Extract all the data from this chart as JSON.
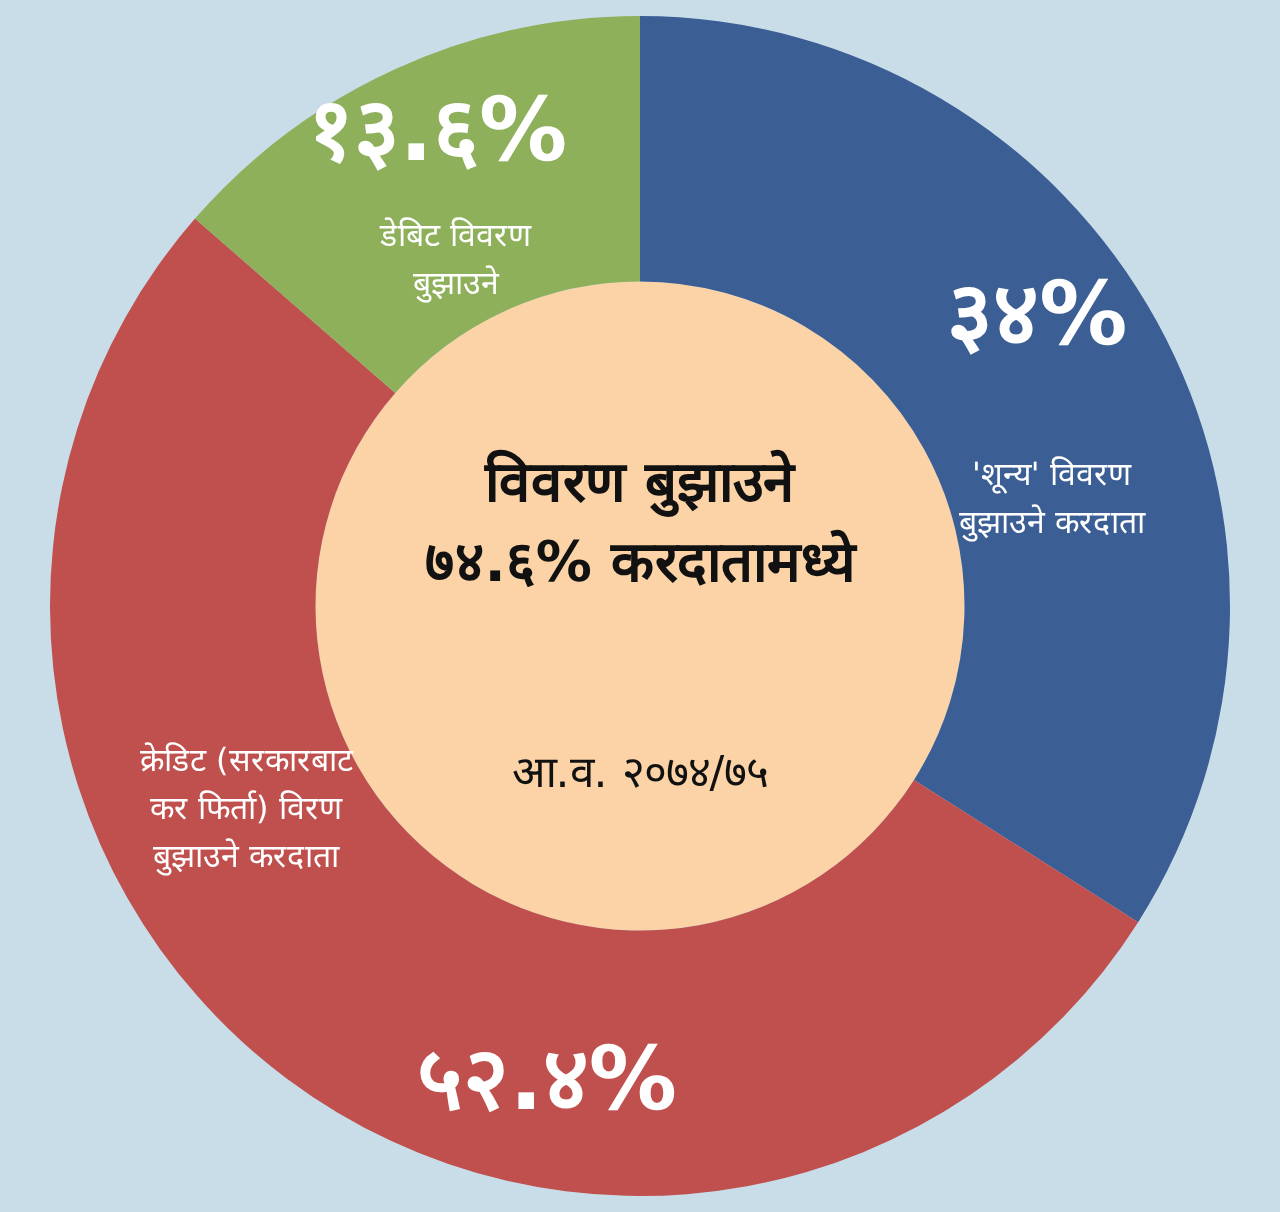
{
  "chart_data": {
    "type": "donut",
    "title": "विवरण बुझाउने ७४.६% करदातामध्ये",
    "subtitle": "आ.व. २०७४/७५",
    "categories": [
      "'शून्य' विवरण बुझाउने करदाता",
      "क्रेडिट (सरकारबाट कर फिर्ता) विरण बुझाउने करदाता",
      "डेबिट विवरण बुझाउने"
    ],
    "values": [
      34,
      52.4,
      13.6
    ],
    "value_labels": [
      "३४%",
      "५२.४%",
      "१३.६%"
    ],
    "colors": [
      "#3b5e95",
      "#c0504d",
      "#8eb05a"
    ]
  }
}
